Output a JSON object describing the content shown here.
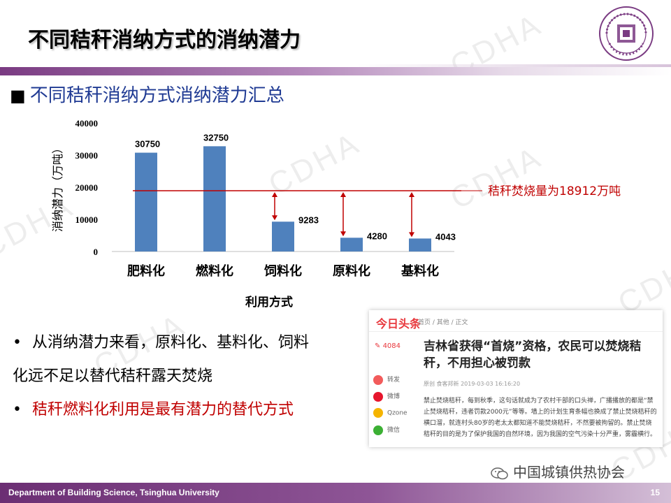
{
  "header": {
    "title": "不同秸秆消纳方式的消纳潜力",
    "subtitle": "不同秸秆消纳方式消纳潜力汇总",
    "bullet_square": "■"
  },
  "watermark": "CDHA",
  "chart_data": {
    "type": "bar",
    "categories": [
      "肥料化",
      "燃料化",
      "饲料化",
      "原料化",
      "基料化"
    ],
    "values": [
      30750,
      32750,
      9283,
      4280,
      4043
    ],
    "ylabel": "消纳潜力（万吨）",
    "xlabel": "利用方式",
    "yticks": [
      "40000",
      "30000",
      "20000",
      "10000",
      "0"
    ],
    "ylim": [
      0,
      40000
    ],
    "bar_color": "#4f81bd",
    "reference_line": {
      "value": 18912,
      "label": "秸秆焚烧量为18912万吨",
      "color": "#c00000"
    }
  },
  "bullets": [
    {
      "dot": "•",
      "text": "从消纳潜力来看，原料化、基料化、饲料",
      "cont": "化远不足以替代秸秆露天焚烧"
    },
    {
      "dot": "•",
      "text": "秸秆燃料化利用是最有潜力的替代方式"
    }
  ],
  "news": {
    "logo": "今日头条",
    "crumb": "首页 / 其他 / 正文",
    "count": "4084",
    "share": [
      "转发",
      "微博",
      "Qzone",
      "微信"
    ],
    "title": "吉林省获得“首烧”资格，农民可以焚烧秸秆，不用担心被罚款",
    "meta": "原创  食客邦新  2019-03-03 16:16:20",
    "body": "禁止焚烧秸秆，每到秋季，这句话就成为了农村干部的口头禅，广播播放的都是“禁止焚烧秸秆，违者罚款2000元”等等。墙上的计划生育条幅也换成了禁止焚烧秸秆的横口溜，就连村头80岁的老太太都知道不能焚烧秸秆，不然要被拘留的。禁止焚烧秸秆的目的是为了保护我国的自然环境，因为我国的空气污染十分严重，雾霾横行。"
  },
  "seal_text": "TSINGHUA UNIVERSITY · 1911",
  "association": "中国城镇供热协会",
  "footer": {
    "department": "Department of Building  Science, Tsinghua University",
    "page": "15"
  },
  "colors": {
    "title_blue": "#1f3a93",
    "accent_red": "#c00000",
    "footer_purple": "#6b2e73"
  }
}
